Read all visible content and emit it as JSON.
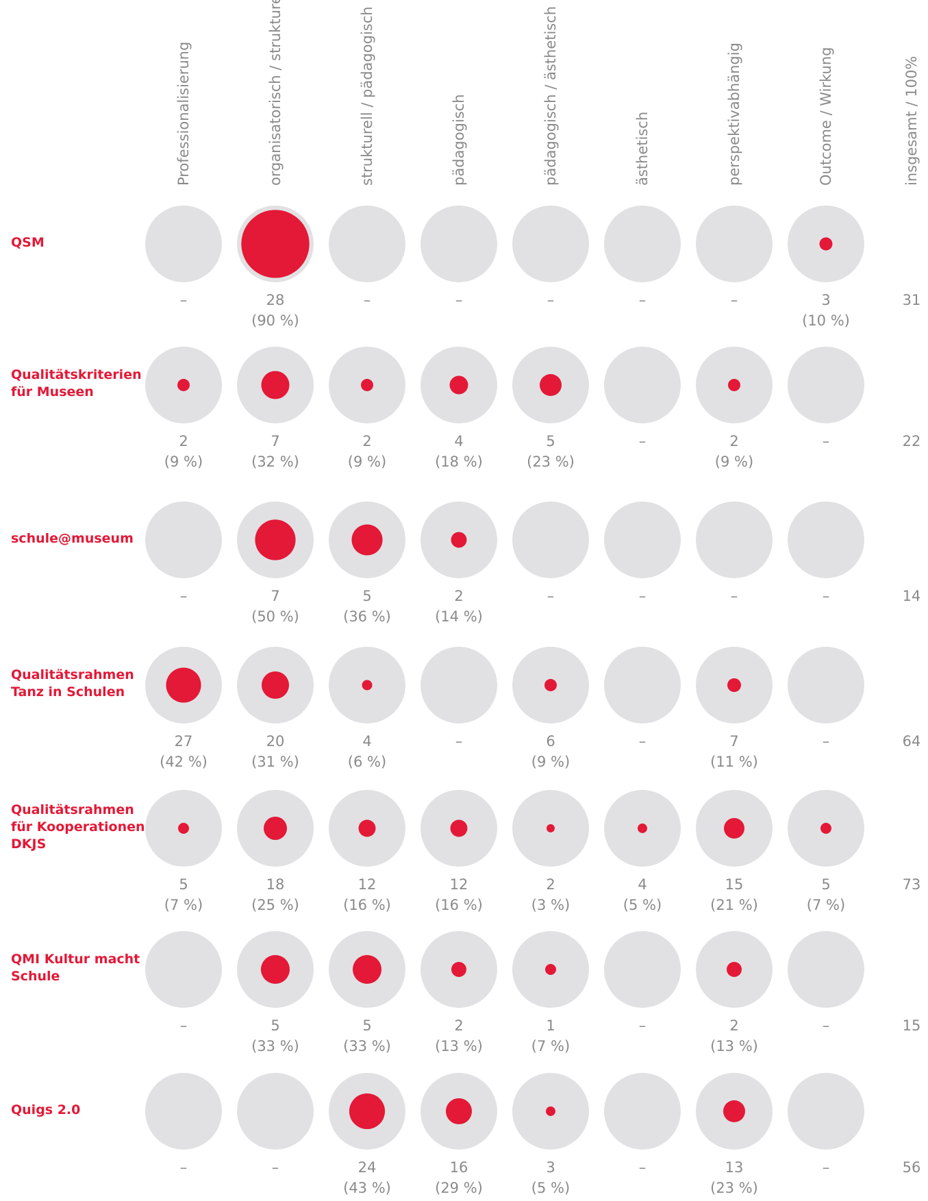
{
  "chart_data": {
    "type": "bubble",
    "categories": [
      "Professionalisierung",
      "organisatorisch / strukturell",
      "strukturell / pädagogisch",
      "pädagogisch",
      "pädagogisch / ästhetisch",
      "ästhetisch",
      "perspektivabhängig",
      "Outcome / Wirkung"
    ],
    "total_label": "insgesamt / 100%",
    "missing_label": "–",
    "color": "#e31937",
    "series": [
      {
        "name": "QSM",
        "values": [
          null,
          28,
          null,
          null,
          null,
          null,
          null,
          3
        ],
        "percents": [
          null,
          90,
          null,
          null,
          null,
          null,
          null,
          10
        ],
        "percent_labels": [
          null,
          "(90 %)",
          null,
          null,
          null,
          null,
          null,
          "(10 %)"
        ],
        "total": 31
      },
      {
        "name": "Qualitätskriterien\nfür Museen",
        "values": [
          2,
          7,
          2,
          4,
          5,
          null,
          2,
          null
        ],
        "percents": [
          9,
          32,
          9,
          18,
          23,
          null,
          9,
          null
        ],
        "percent_labels": [
          "(9 %)",
          "(32 %)",
          "(9 %)",
          "(18 %)",
          "(23 %)",
          null,
          "(9 %)",
          null
        ],
        "total": 22
      },
      {
        "name": "schule@museum",
        "values": [
          null,
          7,
          5,
          2,
          null,
          null,
          null,
          null
        ],
        "percents": [
          null,
          50,
          36,
          14,
          null,
          null,
          null,
          null
        ],
        "percent_labels": [
          null,
          "(50 %)",
          "(36 %)",
          "(14 %)",
          null,
          null,
          null,
          null
        ],
        "total": 14
      },
      {
        "name": "Qualitätsrahmen\nTanz in Schulen",
        "values": [
          27,
          20,
          4,
          null,
          6,
          null,
          7,
          null
        ],
        "percents": [
          42,
          31,
          6,
          null,
          9,
          null,
          11,
          null
        ],
        "percent_labels": [
          "(42 %)",
          "(31 %)",
          "(6 %)",
          null,
          "(9 %)",
          null,
          "(11 %)",
          null
        ],
        "total": 64
      },
      {
        "name": "Qualitätsrahmen\nfür Kooperationen\nDKJS",
        "values": [
          5,
          18,
          12,
          12,
          2,
          4,
          15,
          5
        ],
        "percents": [
          7,
          25,
          16,
          16,
          3,
          5,
          21,
          7
        ],
        "percent_labels": [
          "(7 %)",
          "(25 %)",
          "(16 %)",
          "(16 %)",
          "(3 %)",
          "(5 %)",
          "(21 %)",
          "(7 %)"
        ],
        "total": 73
      },
      {
        "name": "QMI Kultur macht\nSchule",
        "values": [
          null,
          5,
          5,
          2,
          1,
          null,
          2,
          null
        ],
        "percents": [
          null,
          33,
          33,
          13,
          7,
          null,
          13,
          null
        ],
        "percent_labels": [
          null,
          "(33 %)",
          "(33 %)",
          "(13 %)",
          "(7 %)",
          null,
          "(13 %)",
          null
        ],
        "total": 15
      },
      {
        "name": "Quigs 2.0",
        "values": [
          null,
          null,
          24,
          16,
          3,
          null,
          13,
          null
        ],
        "percents": [
          null,
          null,
          43,
          29,
          5,
          null,
          23,
          null
        ],
        "percent_labels": [
          null,
          null,
          "(43 %)",
          "(29 %)",
          "(5 %)",
          null,
          "(23 %)",
          null
        ],
        "total": 56
      }
    ]
  }
}
